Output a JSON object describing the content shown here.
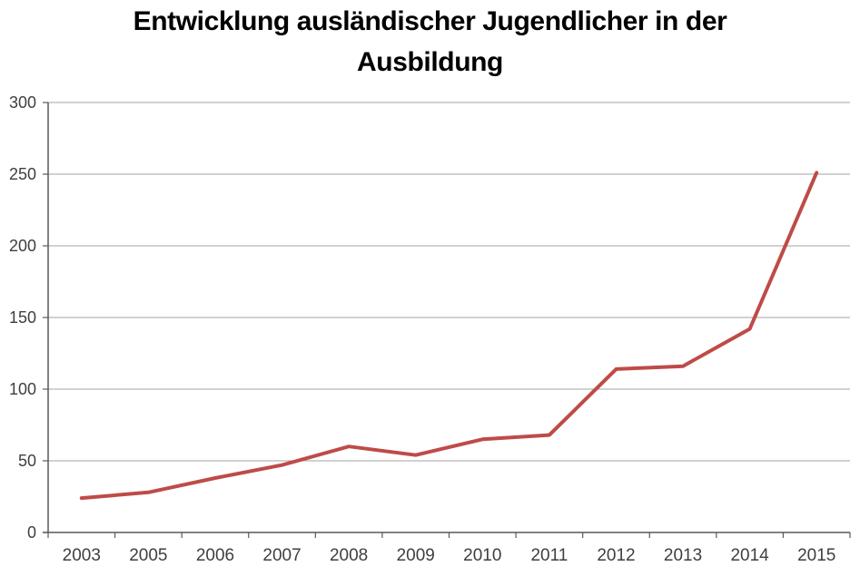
{
  "title_lines": [
    "Entwicklung ausländischer Jugendlicher in der",
    "Ausbildung"
  ],
  "colors": {
    "line": "#BE4B48",
    "grid": "#A3A3A3",
    "axis": "#595959",
    "tick_text": "#3F3F3F",
    "title_text": "#000000",
    "background": "#FFFFFF"
  },
  "chart_data": {
    "type": "line",
    "title": "Entwicklung ausländischer Jugendlicher in der Ausbildung",
    "categories": [
      "2003",
      "2005",
      "2006",
      "2007",
      "2008",
      "2009",
      "2010",
      "2011",
      "2012",
      "2013",
      "2014",
      "2015"
    ],
    "series": [
      {
        "values": [
          24,
          28,
          38,
          47,
          60,
          54,
          65,
          68,
          114,
          116,
          142,
          251
        ]
      }
    ],
    "ylim": [
      0,
      300
    ],
    "ytick_interval": 50,
    "ytick_labels": [
      "0",
      "50",
      "100",
      "150",
      "200",
      "250",
      "300"
    ],
    "grid": true,
    "legend": "none",
    "xlabel": "",
    "ylabel": ""
  }
}
